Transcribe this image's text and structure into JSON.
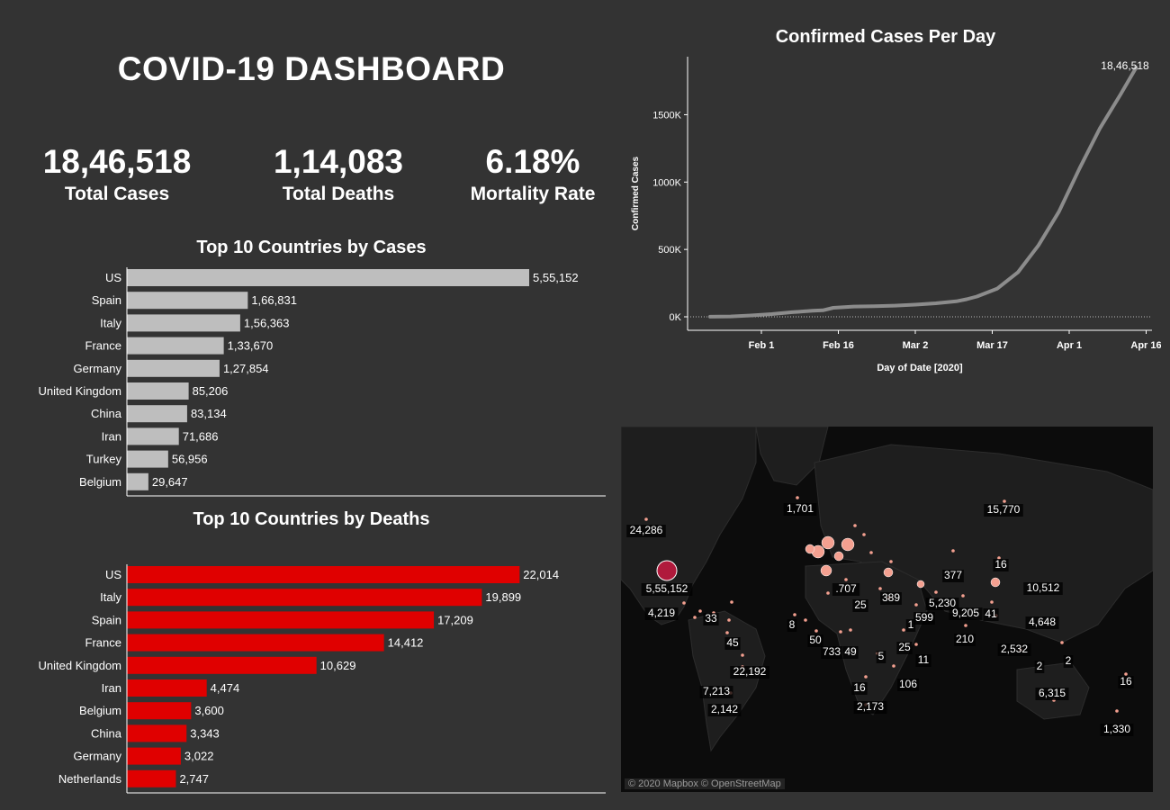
{
  "header": {
    "title": "COVID-19 DASHBOARD"
  },
  "kpis": [
    {
      "value": "18,46,518",
      "label": "Total Cases"
    },
    {
      "value": "1,14,083",
      "label": "Total Deaths"
    },
    {
      "value": "6.18%",
      "label": "Mortality Rate"
    }
  ],
  "colors": {
    "background": "#333333",
    "cases_bar": "#bebebe",
    "deaths_bar": "#e00000",
    "line": "#8c8c8c",
    "bubble": "#f4a090",
    "bubble_us": "#b01a3c"
  },
  "map": {
    "credit": "© 2020 Mapbox © OpenStreetMap",
    "labels": [
      "24,286",
      "1,701",
      "15,770",
      "377",
      "16",
      "5,55,152",
      "10,512",
      ".707",
      "389",
      "5,230",
      "9,205",
      "41",
      "4,219",
      "33",
      "25",
      "599",
      "1",
      "4,648",
      "8",
      "45",
      "50",
      "733",
      "49",
      "25",
      "210",
      "2,532",
      "22,192",
      "5",
      "11",
      "2",
      "2",
      "7,213",
      "16",
      "106",
      "6,315",
      "16",
      "2,142",
      "2,173",
      "1,330"
    ]
  },
  "chart_data": [
    {
      "type": "bar",
      "title": "Top 10 Countries by Cases",
      "categories": [
        "US",
        "Spain",
        "Italy",
        "France",
        "Germany",
        "United Kingdom",
        "China",
        "Iran",
        "Turkey",
        "Belgium"
      ],
      "values": [
        555152,
        166831,
        156363,
        133670,
        127854,
        85206,
        83134,
        71686,
        56956,
        29647
      ],
      "value_labels": [
        "5,55,152",
        "1,66,831",
        "1,56,363",
        "1,33,670",
        "1,27,854",
        "85,206",
        "83,134",
        "71,686",
        "56,956",
        "29,647"
      ],
      "orientation": "horizontal"
    },
    {
      "type": "bar",
      "title": "Top 10 Countries by Deaths",
      "categories": [
        "US",
        "Italy",
        "Spain",
        "France",
        "United Kingdom",
        "Iran",
        "Belgium",
        "China",
        "Germany",
        "Netherlands"
      ],
      "values": [
        22014,
        19899,
        17209,
        14412,
        10629,
        4474,
        3600,
        3343,
        3022,
        2747
      ],
      "value_labels": [
        "22,014",
        "19,899",
        "17,209",
        "14,412",
        "10,629",
        "4,474",
        "3,600",
        "3,343",
        "3,022",
        "2,747"
      ],
      "orientation": "horizontal"
    },
    {
      "type": "line",
      "title": "Confirmed Cases Per Day",
      "xlabel": "Day of Date [2020]",
      "ylabel": "Confirmed Cases",
      "x_ticks": [
        "Feb 1",
        "Feb 16",
        "Mar 2",
        "Mar 17",
        "Apr 1",
        "Apr 16"
      ],
      "y_ticks": [
        "0K",
        "500K",
        "1000K",
        "1500K"
      ],
      "ylim": [
        0,
        1950000
      ],
      "end_label": "18,46,518",
      "x": [
        "Jan 22",
        "Jan 26",
        "Jan 30",
        "Feb 3",
        "Feb 7",
        "Feb 11",
        "Feb 13",
        "Feb 15",
        "Feb 19",
        "Feb 23",
        "Feb 27",
        "Mar 2",
        "Mar 6",
        "Mar 10",
        "Mar 12",
        "Mar 14",
        "Mar 18",
        "Mar 22",
        "Mar 26",
        "Mar 30",
        "Apr 3",
        "Apr 7",
        "Apr 11",
        "Apr 14"
      ],
      "y": [
        555,
        2900,
        9800,
        20000,
        34000,
        45000,
        48000,
        67000,
        76000,
        79000,
        83000,
        90000,
        100000,
        115000,
        130000,
        150000,
        210000,
        330000,
        530000,
        780000,
        1100000,
        1400000,
        1650000,
        1846518
      ]
    }
  ]
}
